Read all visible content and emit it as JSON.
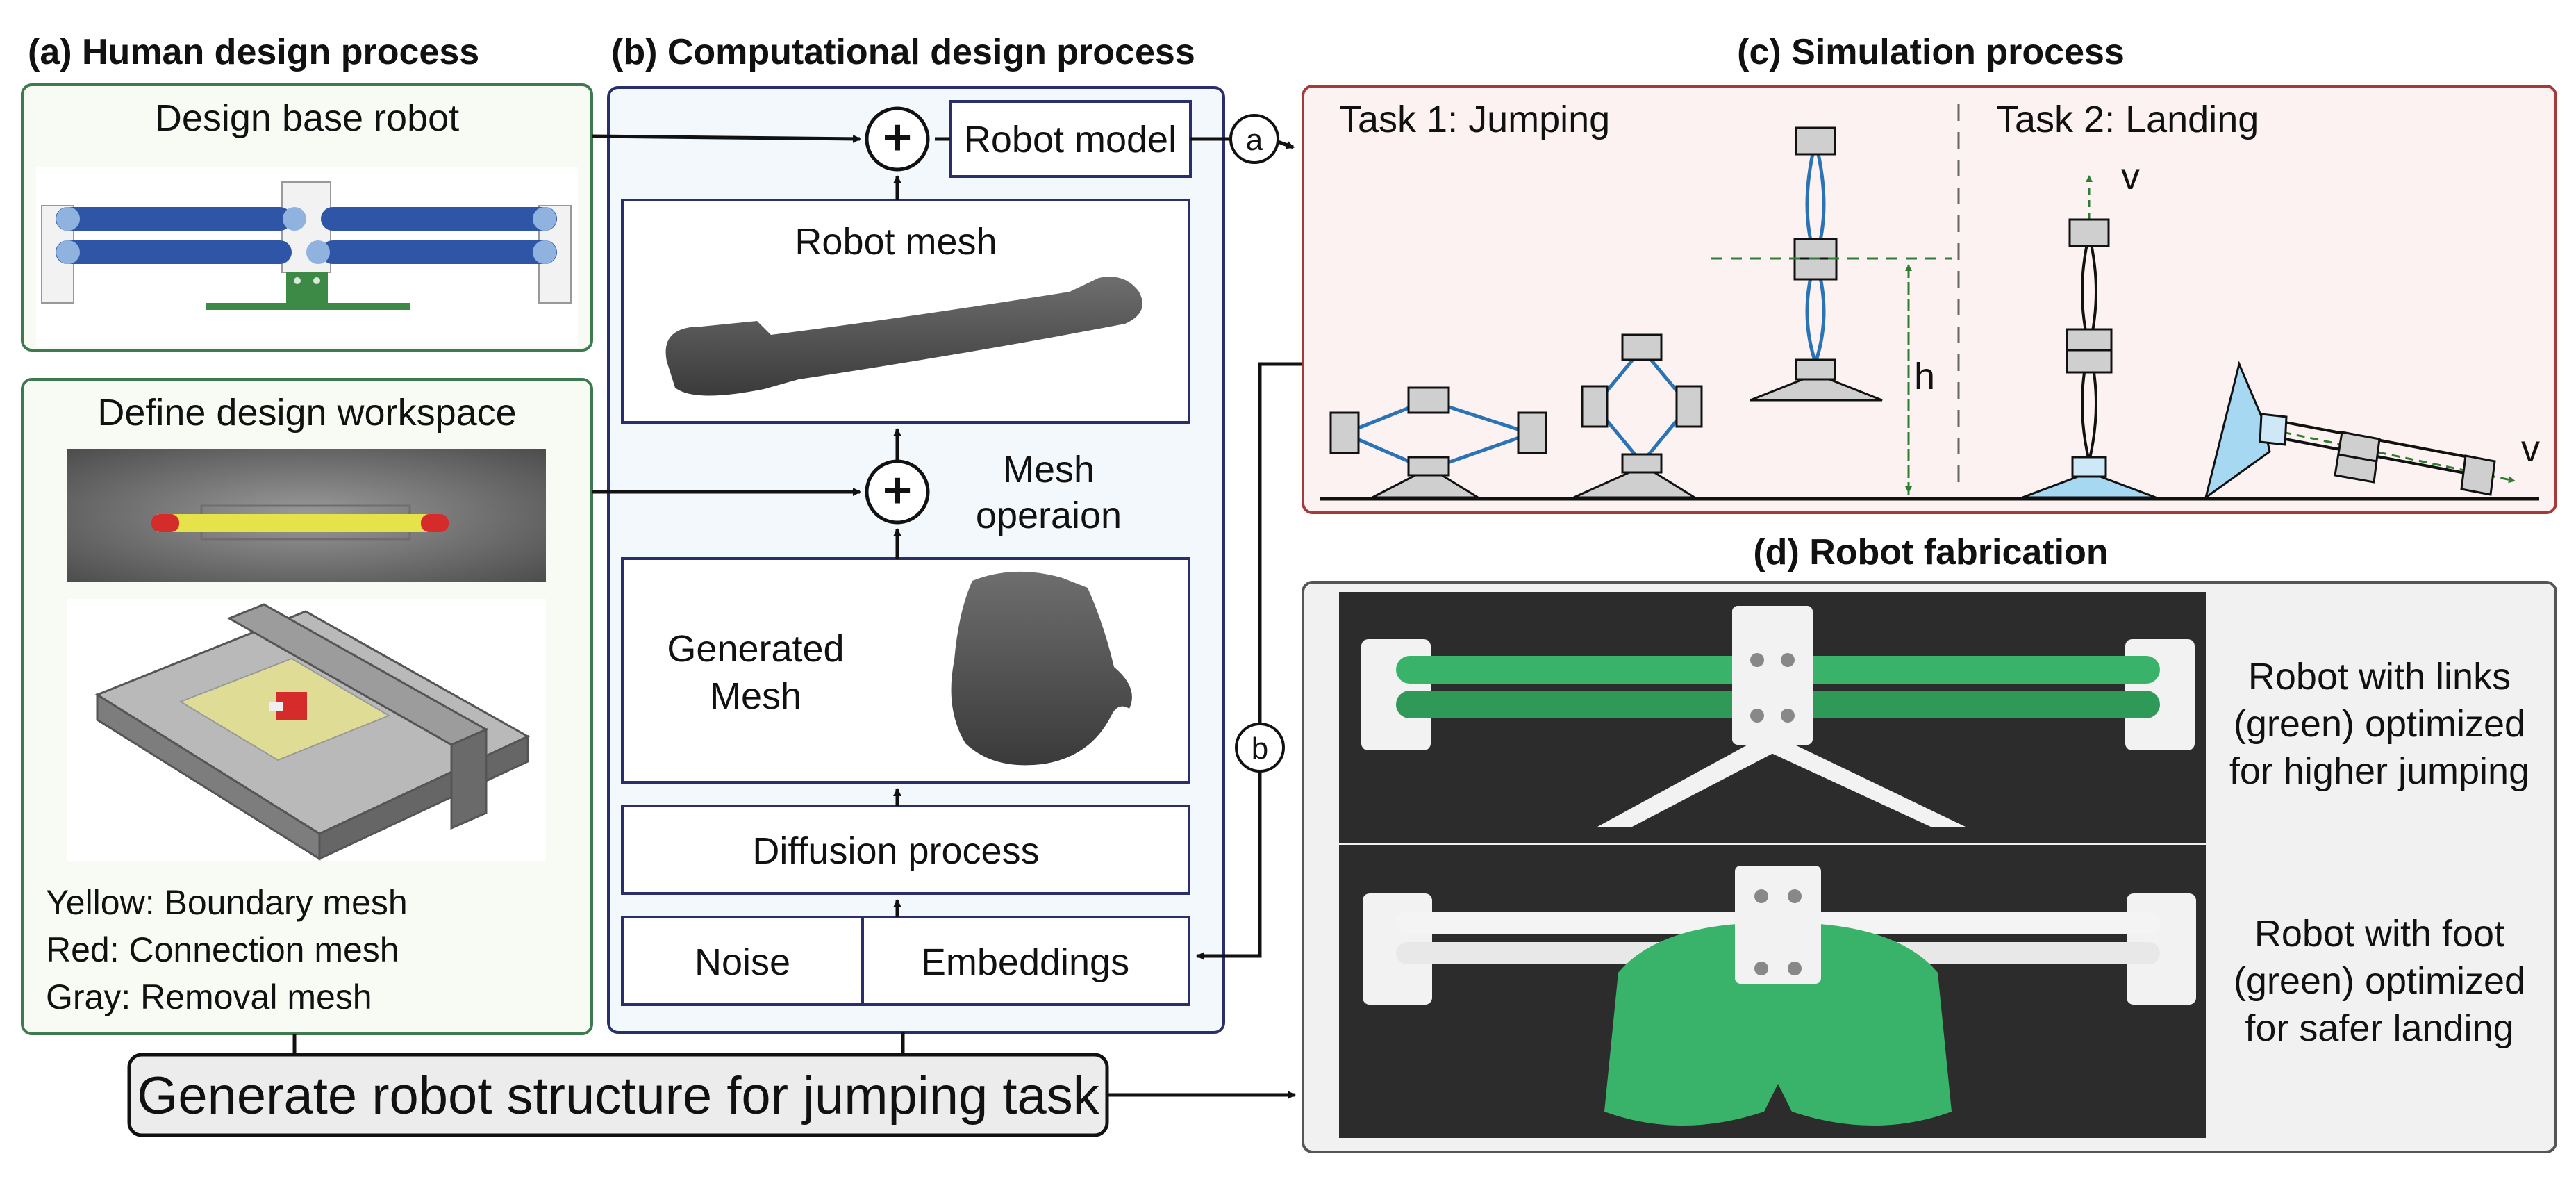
{
  "sections": {
    "a_title": "(a) Human design process",
    "b_title": "(b) Computational design process",
    "c_title": "(c) Simulation process",
    "d_title": "(d) Robot fabrication"
  },
  "human": {
    "design_base": "Design base robot",
    "define_workspace": "Define design workspace",
    "legend": [
      "Yellow: Boundary mesh",
      "Red: Connection mesh",
      "Gray: Removal mesh"
    ]
  },
  "computational": {
    "robot_model": "Robot model",
    "robot_mesh": "Robot mesh",
    "mesh_operation": [
      "Mesh",
      "operaion"
    ],
    "generated_mesh": [
      "Generated",
      "Mesh"
    ],
    "diffusion": "Diffusion process",
    "noise": "Noise",
    "embeddings": "Embeddings",
    "plus": "+"
  },
  "connectors": {
    "a": "a",
    "b": "b"
  },
  "simulation": {
    "task1": "Task 1: Jumping",
    "task2": "Task 2: Landing",
    "height": "h",
    "velocity": "v"
  },
  "fabrication": {
    "caption1": [
      "Robot with links",
      "(green) optimized",
      "for higher jumping"
    ],
    "caption2": [
      "Robot with foot",
      "(green) optimized",
      "for safer landing"
    ]
  },
  "bottom": {
    "label": "Generate robot structure for jumping task"
  },
  "colors": {
    "green_border": "#3d7a4f",
    "navy_border": "#2a2f6b",
    "red_border": "#a53a3a",
    "link_blue": "#2b73b5",
    "print_green": "#39b36a"
  }
}
